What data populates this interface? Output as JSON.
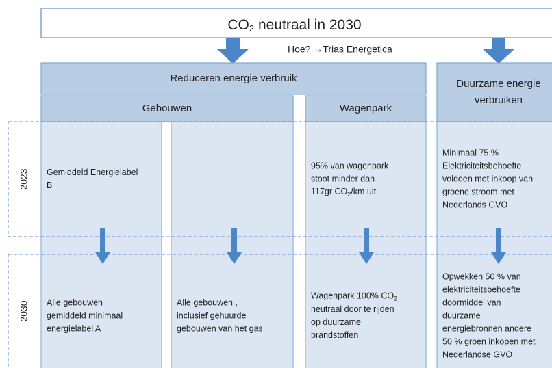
{
  "title": {
    "pre": "CO",
    "sub": "2",
    "post": " neutraal in 2030"
  },
  "subtitle": "Hoe? →Trias Energetica",
  "columns": {
    "reduce": {
      "header": "Reduceren energie verbruik",
      "groups": [
        "Gebouwen",
        "Wagenpark"
      ]
    },
    "sustainable": {
      "header": [
        "Duurzame energie",
        "verbruiken"
      ]
    }
  },
  "rows": [
    {
      "year": "2023",
      "cells": [
        [
          "Gemiddeld Energielabel",
          "B"
        ],
        [],
        [
          "95% van wagenpark",
          "stoot minder dan",
          {
            "pre": "117gr CO",
            "sub": "2",
            "post": "/km  uit"
          }
        ],
        [
          "Minimaal 75 %",
          "Elektriciteitsbehoefte",
          "voldoen met inkoop van",
          "groene stroom met",
          "Nederlands GVO"
        ]
      ]
    },
    {
      "year": "2030",
      "cells": [
        [
          "Alle gebouwen",
          "gemiddeld minimaal",
          "energielabel A"
        ],
        [
          "Alle gebouwen ,",
          "inclusief gehuurde",
          "gebouwen van het gas"
        ],
        [
          {
            "pre": "Wagenpark 100% CO",
            "sub": "2"
          },
          "neutraal door  te rijden",
          "op duurzame",
          "brandstoffen"
        ],
        [
          "Opwekken  50 % van",
          "elektriciteitsbehoefte",
          "doormiddel van",
          "duurzame",
          "energiebronnen andere",
          "50 % groen inkopen met",
          "Nederlandse  GVO"
        ]
      ]
    }
  ]
}
